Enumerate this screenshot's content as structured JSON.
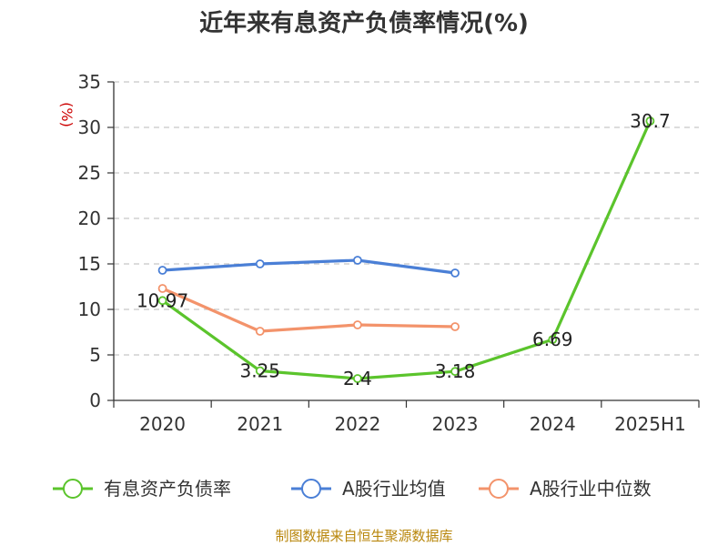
{
  "chart_data": {
    "type": "line",
    "title": "近年来有息资产负债率情况(%)",
    "ylabel": "(%)",
    "categories": [
      "2020",
      "2021",
      "2022",
      "2023",
      "2024",
      "2025H1"
    ],
    "ylim": [
      0,
      35
    ],
    "yticks": [
      "0",
      "5",
      "10",
      "15",
      "20",
      "25",
      "30",
      "35"
    ],
    "grid": true,
    "legend_position": "bottom",
    "series": [
      {
        "name": "有息资产负债率",
        "color": "#5bc42c",
        "values": [
          10.97,
          3.25,
          2.4,
          3.18,
          6.69,
          30.7
        ],
        "labels": [
          "10.97",
          "3.25",
          "2.4",
          "3.18",
          "6.69",
          "30.7"
        ]
      },
      {
        "name": "A股行业均值",
        "color": "#4a7fd6",
        "values": [
          14.3,
          15.0,
          15.4,
          14.0,
          null,
          null
        ]
      },
      {
        "name": "A股行业中位数",
        "color": "#f3936b",
        "values": [
          12.3,
          7.6,
          8.3,
          8.1,
          null,
          null
        ]
      }
    ]
  },
  "source": "制图数据来自恒生聚源数据库"
}
